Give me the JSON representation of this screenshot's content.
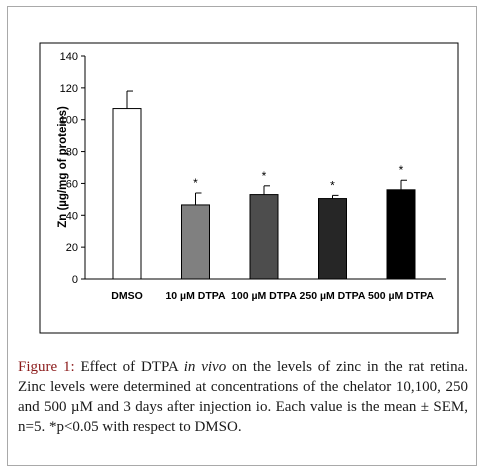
{
  "chart_data": {
    "type": "bar",
    "categories": [
      "DMSO",
      "10 µM DTPA",
      "100 µM DTPA",
      "250 µM DTPA",
      "500 µM DTPA"
    ],
    "values": [
      107,
      46.5,
      53,
      50.5,
      56
    ],
    "errors": [
      11,
      7.5,
      5.5,
      2,
      6
    ],
    "significance": [
      "",
      "*",
      "*",
      "*",
      "*"
    ],
    "bar_colors": [
      "#ffffff",
      "#808080",
      "#4d4d4d",
      "#262626",
      "#000000"
    ],
    "ylabel": "Zn (µg/mg of proteins)",
    "xlabel": "",
    "ylim": [
      0,
      140
    ],
    "yticks": [
      0,
      20,
      40,
      60,
      80,
      100,
      120,
      140
    ],
    "grid": false
  },
  "caption": {
    "label": "Figure 1:",
    "part1": " Effect of DTPA ",
    "italic": "in vivo",
    "part2": " on the levels of zinc in the rat retina. Zinc levels were determined at concentrations of the chelator 10,100, 250 and 500 µM and 3 days after injection io. Each value is the mean ± SEM, n=5. *p<0.05 with respect to DMSO."
  },
  "colors": {
    "frame_border": "#a9a9a9",
    "caption_label": "#8b1a1a"
  }
}
